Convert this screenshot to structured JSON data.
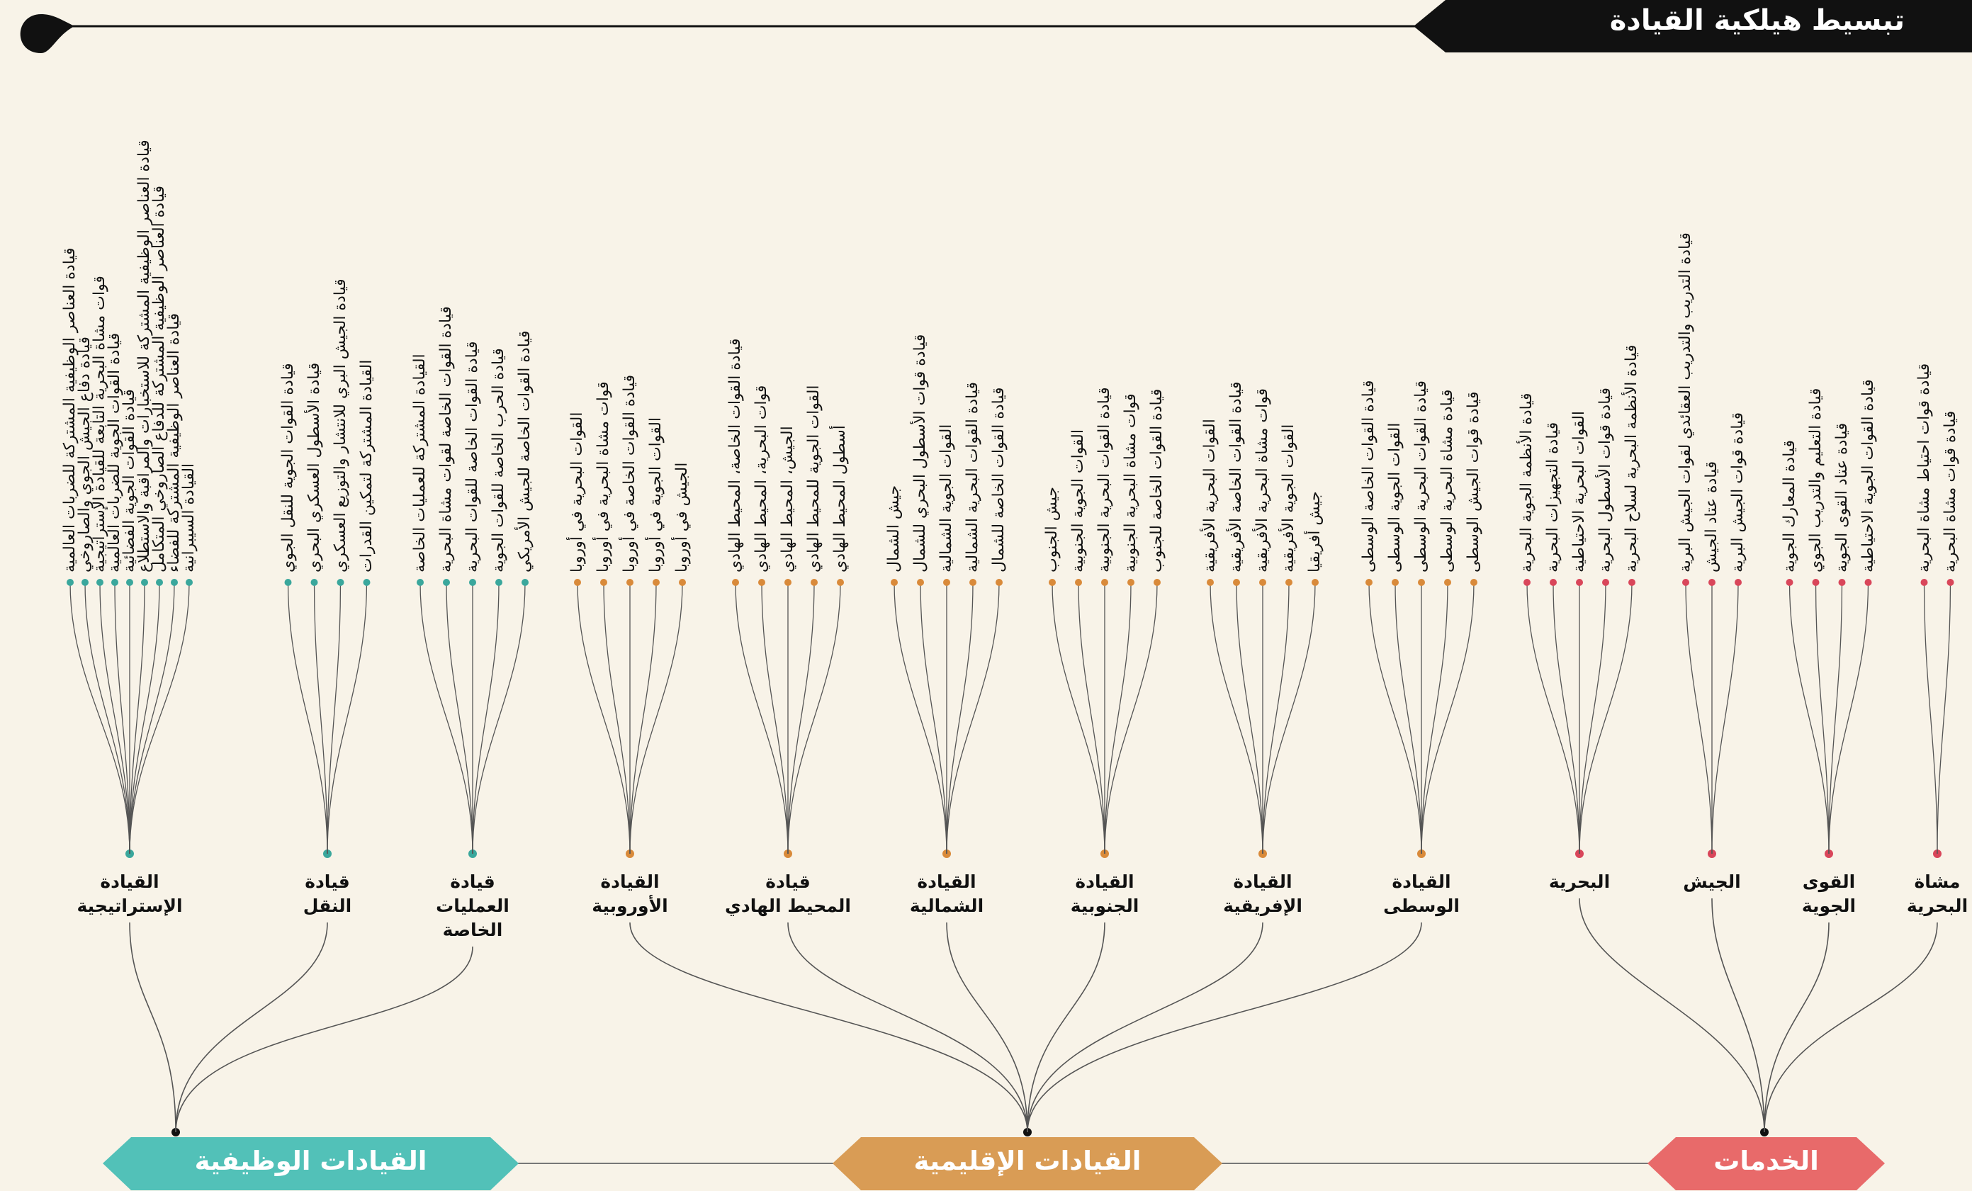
{
  "title": "تبسيط هيلكية القيادة",
  "colors": {
    "background": "#f8f3e8",
    "functional": "#52c1b8",
    "regional": "#d99c55",
    "services": "#e86a6a",
    "functional_dot": "#3aa79c",
    "regional_dot": "#d98a3a",
    "services_dot": "#d9465a",
    "line": "#555555",
    "dark": "#111111"
  },
  "groups": [
    {
      "id": "functional",
      "label": "القيادات الوظيفية",
      "commands": [
        {
          "label": "القيادة\nالإستراتيجية",
          "leaves": [
            "قيادة العناصر الوظيفية المشتركة للضربات العالمية",
            "قيادة دفاع الجيش الجوي والصاروخي",
            "قوات مشاة البحرية التابعة للقيادة الإستراتيجية",
            "قيادة القوات الجوية للضربات العالمية",
            "قيادة القوات الجوية الفضائية",
            "قيادة العناصر الوظيفية المشتركة للاستخبارات والمراقبة والاستطلاع",
            "قيادة العناصر الوظيفية المشتركة للدفاع الصاروخي المتكامل",
            "قيادة العناصر الوظيفية المشتركة للفضاء",
            "القيادة السيبرانية"
          ]
        },
        {
          "label": "قيادة\nالنقل",
          "leaves": [
            "قيادة القوات الجوية للنقل الجوي",
            "قيادة الأسطول العسكري البحري",
            "قيادة الجيش البري للانتشار والتوزيع العسكري",
            "القيادة المشتركة لتمكين القدرات"
          ]
        },
        {
          "label": "قيادة\nالعمليات\nالخاصة",
          "leaves": [
            "القيادة المشتركة للعمليات الخاصة",
            "قيادة القوات الخاصة لقوات مشاة البحرية",
            "قيادة القوات الخاصة للقوات البحرية",
            "قيادة الحرب الخاصة للقوات الجوية",
            "قيادة القوات الخاصة للجيش الأمريكي"
          ]
        }
      ]
    },
    {
      "id": "regional",
      "label": "القيادات الإقليمية",
      "commands": [
        {
          "label": "القيادة\nالأوروبية",
          "leaves": [
            "القوات البحرية في أوروبا",
            "قوات مشاة البحرية في أوروبا",
            "قيادة القوات الخاصة في أوروبا",
            "القوات الجوية في أوروبا",
            "الجيش في أوروبا"
          ]
        },
        {
          "label": "قيادة\nالمحيط الهادي",
          "leaves": [
            "قيادة القوات الخاصة، المحيط الهادي",
            "قوات البحرية، المحيط الهادي",
            "الجيش، المحيط الهادي",
            "القوات الجوية للمحيط الهادي",
            "أسطول المحيط الهادي"
          ]
        },
        {
          "label": "القيادة\nالشمالية",
          "leaves": [
            "جيش الشمال",
            "قيادة قوات الأسطول البحري للشمال",
            "القوات الجوية الشمالية",
            "قيادة القوات البحرية الشمالية",
            "قيادة القوات الخاصة للشمال"
          ]
        },
        {
          "label": "القيادة\nالجنوبية",
          "leaves": [
            "جيش الجنوب",
            "القوات الجوية الجنوبية",
            "قيادة القوات البحرية الجنوبية",
            "قوات مشاة البحرية الجنوبية",
            "قيادة القوات الخاصة للجنوب"
          ]
        },
        {
          "label": "القيادة\nالإفريقية",
          "leaves": [
            "القوات البحرية الأفريقية",
            "قيادة القوات الخاصة الأفريقية",
            "قوات مشاة البحرية الأفريقية",
            "القوات الجوية الأفريقية",
            "جيش أفريقيا"
          ]
        },
        {
          "label": "القيادة\nالوسطى",
          "leaves": [
            "قيادة القوات الخاصة الوسطى",
            "القوات الجوية الوسطى",
            "قيادة القوات البحرية الوسطى",
            "قيادة مشاة البحرية الوسطى",
            "قيادة قوات الجيش الوسطى"
          ]
        }
      ]
    },
    {
      "id": "services",
      "label": "الخدمات",
      "commands": [
        {
          "label": "البحرية",
          "leaves": [
            "قيادة الأنظمة الجوية البحرية",
            "قيادة التجهيزات البحرية",
            "القوات البحرية الاحتياطية",
            "قيادة قوات الأسطول البحرية",
            "قيادة الأنظمة البحرية لسلاح البحرية"
          ]
        },
        {
          "label": "الجيش",
          "leaves": [
            "قيادة التدريب والتدريب العقائدي لقوات الجيش البرية",
            "قيادة عتاد الجيش",
            "قيادة قوات الجيش البرية"
          ]
        },
        {
          "label": "القوى\nالجوية",
          "leaves": [
            "قيادة المعارك الجوية",
            "قيادة التعليم والتدريب الجوي",
            "قيادة عتاد القوى الجوية",
            "قيادة القوات الجوية الاحتياطية"
          ]
        },
        {
          "label": "مشاة\nالبحرية",
          "leaves": [
            "قيادة قوات احتياط مشاة البحرية",
            "قيادة قوات مشاة البحرية"
          ]
        }
      ]
    }
  ]
}
